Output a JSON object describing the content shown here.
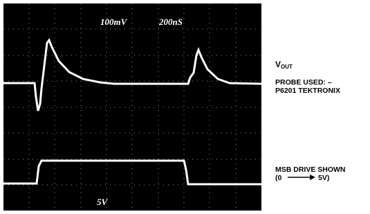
{
  "scope": {
    "volts_per_div": "100mV",
    "time_per_div": "200nS",
    "drive_scale": "5V"
  },
  "legend": {
    "vout_main": "V",
    "vout_sub": "OUT",
    "probe_line1": "PROBE USED: –",
    "probe_line2": "P6201 TEKTRONIX",
    "msb_line1": "MSB DRIVE SHOWN",
    "msb_line2_start": "(0",
    "msb_line2_end": "5V)"
  }
}
